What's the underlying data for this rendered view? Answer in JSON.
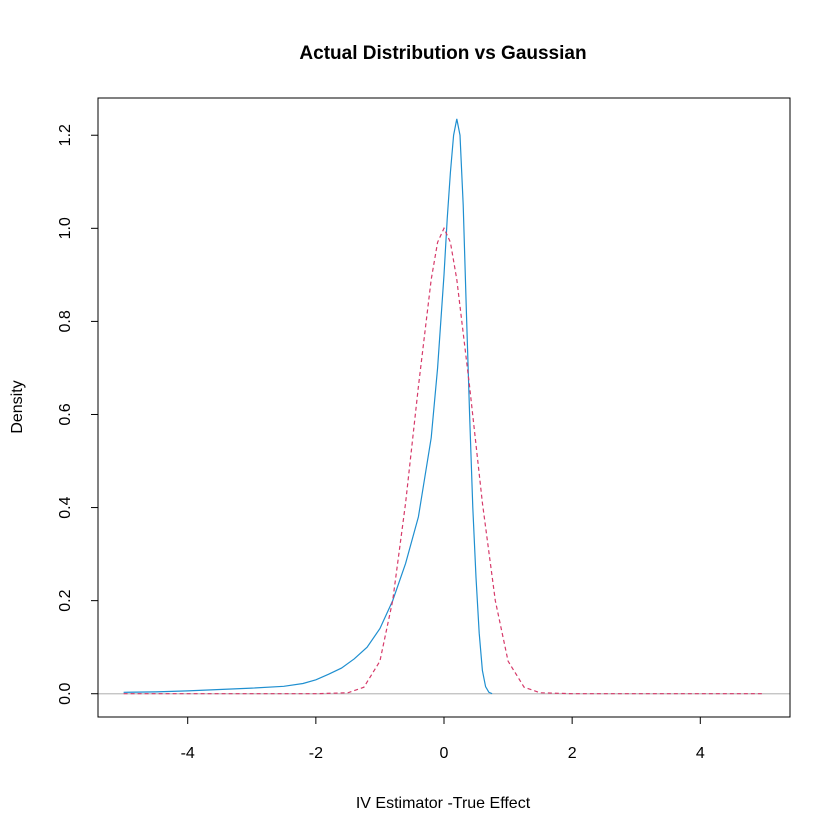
{
  "chart_data": {
    "type": "line",
    "title": "Actual Distribution vs Gaussian",
    "xlabel": "IV Estimator -True Effect",
    "ylabel": "Density",
    "xlim": [
      -5.4,
      5.4
    ],
    "ylim": [
      -0.05,
      1.28
    ],
    "x_ticks": [
      -4,
      -2,
      0,
      2,
      4
    ],
    "y_ticks": [
      0.0,
      0.2,
      0.4,
      0.6,
      0.8,
      1.0,
      1.2
    ],
    "x_tick_labels": [
      "-4",
      "-2",
      "0",
      "2",
      "4"
    ],
    "y_tick_labels": [
      "0.0",
      "0.2",
      "0.4",
      "0.6",
      "0.8",
      "1.0",
      "1.2"
    ],
    "grid": false,
    "reference_line": {
      "y": 0,
      "color": "#bebebe"
    },
    "series": [
      {
        "style": "solid",
        "color": "#1f8fd0",
        "x": [
          -5.0,
          -4.5,
          -4.0,
          -3.5,
          -3.0,
          -2.5,
          -2.2,
          -2.0,
          -1.8,
          -1.6,
          -1.4,
          -1.2,
          -1.0,
          -0.8,
          -0.6,
          -0.4,
          -0.2,
          -0.1,
          0.0,
          0.05,
          0.1,
          0.15,
          0.2,
          0.25,
          0.3,
          0.35,
          0.4,
          0.45,
          0.5,
          0.55,
          0.6,
          0.65,
          0.7,
          0.75
        ],
        "y": [
          0.003,
          0.004,
          0.006,
          0.009,
          0.012,
          0.016,
          0.022,
          0.03,
          0.042,
          0.055,
          0.075,
          0.1,
          0.14,
          0.2,
          0.28,
          0.38,
          0.55,
          0.7,
          0.9,
          1.02,
          1.12,
          1.2,
          1.235,
          1.2,
          1.05,
          0.82,
          0.6,
          0.4,
          0.25,
          0.13,
          0.05,
          0.015,
          0.003,
          0.0
        ]
      },
      {
        "style": "dashed",
        "color": "#d63a6a",
        "x": [
          -5.0,
          -2.0,
          -1.5,
          -1.25,
          -1.0,
          -0.8,
          -0.6,
          -0.4,
          -0.2,
          -0.1,
          0.0,
          0.1,
          0.2,
          0.4,
          0.6,
          0.8,
          1.0,
          1.25,
          1.5,
          2.0,
          5.0
        ],
        "y": [
          0.0,
          0.0,
          0.002,
          0.014,
          0.07,
          0.2,
          0.41,
          0.66,
          0.89,
          0.97,
          1.0,
          0.97,
          0.89,
          0.66,
          0.41,
          0.2,
          0.07,
          0.014,
          0.002,
          0.0,
          0.0
        ]
      }
    ]
  }
}
